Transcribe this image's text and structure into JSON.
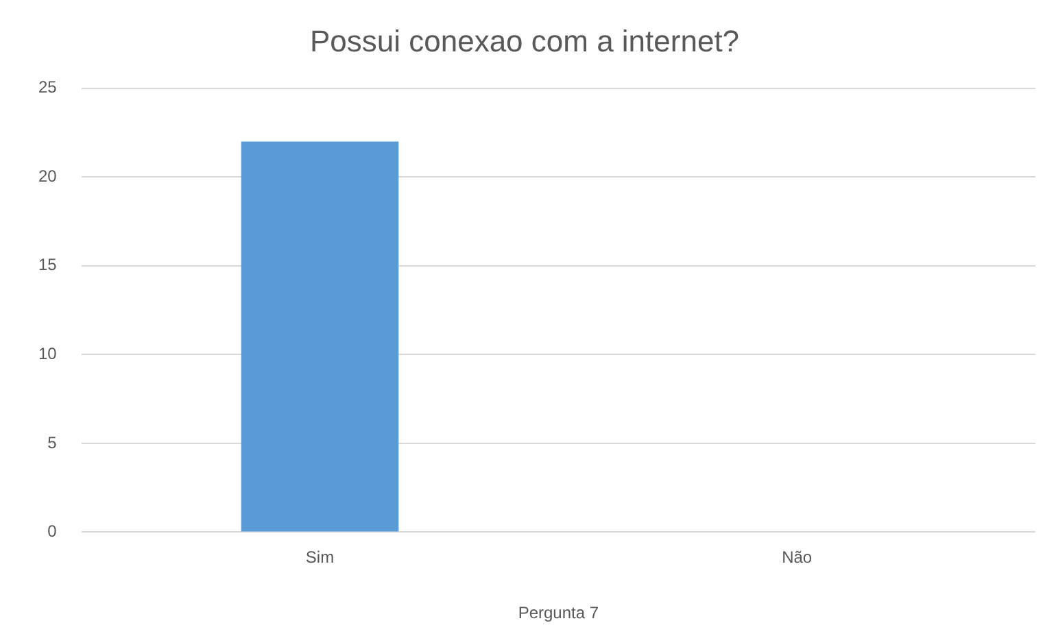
{
  "chart_data": {
    "type": "bar",
    "title": "Possui conexao com a internet?",
    "xlabel": "Pergunta 7",
    "categories": [
      "Sim",
      "Não"
    ],
    "values": [
      22,
      0
    ],
    "color": "#5b9bd5",
    "ylim": [
      0,
      25
    ],
    "yticks": [
      0,
      5,
      10,
      15,
      20,
      25
    ],
    "grid": "y",
    "legend": false
  }
}
